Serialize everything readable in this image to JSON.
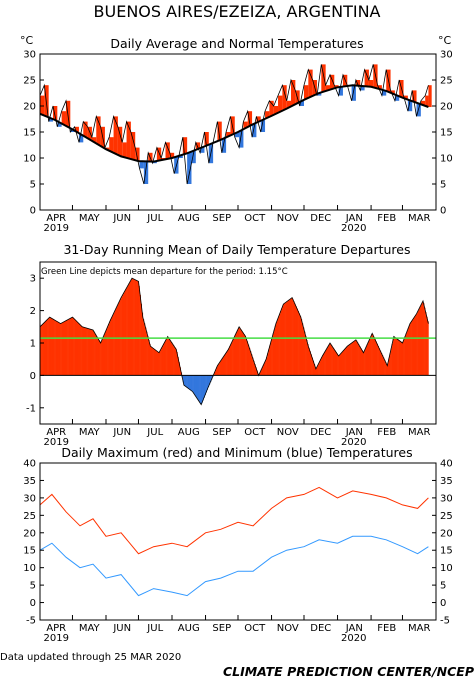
{
  "page": {
    "title": "BUENOS AIRES/EZEIZA, ARGENTINA",
    "footer_left": "Data updated through 25 MAR 2020",
    "footer_right": "CLIMATE PREDICTION CENTER/NCEP"
  },
  "colors": {
    "warm": "#ff3300",
    "cool": "#3377dd",
    "normal": "#000000",
    "mean_line": "#44dd44",
    "tmax": "#ff3300",
    "tmin": "#3399ff"
  },
  "months": [
    "APR",
    "MAY",
    "JUN",
    "JUL",
    "AUG",
    "SEP",
    "OCT",
    "NOV",
    "DEC",
    "JAN",
    "FEB",
    "MAR"
  ],
  "years": [
    "2019",
    "2020"
  ],
  "chart_data": [
    {
      "type": "area",
      "title": "Daily Average and Normal Temperatures",
      "unit_left": "°C",
      "unit_right": "°C",
      "ylim": [
        0,
        30
      ],
      "yticks": [
        0,
        5,
        10,
        15,
        20,
        25,
        30
      ],
      "x_start": "2019-04-01",
      "x_end": "2020-03-31",
      "normal": [
        [
          "2019-04-01",
          18.5
        ],
        [
          "2019-04-15",
          17.3
        ],
        [
          "2019-05-01",
          15.5
        ],
        [
          "2019-05-15",
          13.8
        ],
        [
          "2019-06-01",
          11.7
        ],
        [
          "2019-06-15",
          10.3
        ],
        [
          "2019-07-01",
          9.4
        ],
        [
          "2019-07-15",
          9.3
        ],
        [
          "2019-08-01",
          10.0
        ],
        [
          "2019-08-15",
          10.9
        ],
        [
          "2019-09-01",
          12.3
        ],
        [
          "2019-09-15",
          13.5
        ],
        [
          "2019-10-01",
          15.0
        ],
        [
          "2019-10-15",
          16.5
        ],
        [
          "2019-11-01",
          18.1
        ],
        [
          "2019-11-15",
          19.5
        ],
        [
          "2019-12-01",
          21.2
        ],
        [
          "2019-12-15",
          22.5
        ],
        [
          "2020-01-01",
          23.6
        ],
        [
          "2020-01-15",
          24.0
        ],
        [
          "2020-02-01",
          23.7
        ],
        [
          "2020-02-15",
          22.9
        ],
        [
          "2020-03-01",
          21.6
        ],
        [
          "2020-03-25",
          19.8
        ]
      ],
      "daily": [
        [
          "2019-04-01",
          22
        ],
        [
          "2019-04-05",
          24
        ],
        [
          "2019-04-09",
          17
        ],
        [
          "2019-04-13",
          20
        ],
        [
          "2019-04-17",
          16
        ],
        [
          "2019-04-21",
          19
        ],
        [
          "2019-04-25",
          21
        ],
        [
          "2019-04-29",
          15
        ],
        [
          "2019-05-03",
          16
        ],
        [
          "2019-05-07",
          13
        ],
        [
          "2019-05-11",
          17
        ],
        [
          "2019-05-15",
          16
        ],
        [
          "2019-05-19",
          14
        ],
        [
          "2019-05-23",
          18
        ],
        [
          "2019-05-27",
          16
        ],
        [
          "2019-05-31",
          12
        ],
        [
          "2019-06-04",
          14
        ],
        [
          "2019-06-08",
          18
        ],
        [
          "2019-06-12",
          16
        ],
        [
          "2019-06-16",
          13
        ],
        [
          "2019-06-20",
          17
        ],
        [
          "2019-06-24",
          15
        ],
        [
          "2019-06-28",
          12
        ],
        [
          "2019-07-02",
          8
        ],
        [
          "2019-07-06",
          5
        ],
        [
          "2019-07-10",
          11
        ],
        [
          "2019-07-14",
          9
        ],
        [
          "2019-07-18",
          12
        ],
        [
          "2019-07-22",
          10
        ],
        [
          "2019-07-26",
          13
        ],
        [
          "2019-07-30",
          11
        ],
        [
          "2019-08-03",
          7
        ],
        [
          "2019-08-07",
          10
        ],
        [
          "2019-08-11",
          14
        ],
        [
          "2019-08-15",
          5
        ],
        [
          "2019-08-19",
          9
        ],
        [
          "2019-08-23",
          13
        ],
        [
          "2019-08-27",
          11
        ],
        [
          "2019-08-31",
          15
        ],
        [
          "2019-09-04",
          9
        ],
        [
          "2019-09-08",
          13
        ],
        [
          "2019-09-12",
          17
        ],
        [
          "2019-09-16",
          11
        ],
        [
          "2019-09-20",
          15
        ],
        [
          "2019-09-24",
          18
        ],
        [
          "2019-09-28",
          14
        ],
        [
          "2019-10-02",
          12
        ],
        [
          "2019-10-06",
          17
        ],
        [
          "2019-10-10",
          19
        ],
        [
          "2019-10-14",
          14
        ],
        [
          "2019-10-18",
          18
        ],
        [
          "2019-10-22",
          15
        ],
        [
          "2019-10-26",
          19
        ],
        [
          "2019-10-30",
          21
        ],
        [
          "2019-11-03",
          20
        ],
        [
          "2019-11-07",
          22
        ],
        [
          "2019-11-11",
          24
        ],
        [
          "2019-11-15",
          21
        ],
        [
          "2019-11-19",
          25
        ],
        [
          "2019-11-23",
          23
        ],
        [
          "2019-11-27",
          20
        ],
        [
          "2019-12-01",
          24
        ],
        [
          "2019-12-05",
          27
        ],
        [
          "2019-12-09",
          25
        ],
        [
          "2019-12-13",
          22
        ],
        [
          "2019-12-17",
          28
        ],
        [
          "2019-12-21",
          24
        ],
        [
          "2019-12-25",
          26
        ],
        [
          "2019-12-29",
          24
        ],
        [
          "2020-01-02",
          22
        ],
        [
          "2020-01-06",
          26
        ],
        [
          "2020-01-10",
          24
        ],
        [
          "2020-01-14",
          21
        ],
        [
          "2020-01-18",
          25
        ],
        [
          "2020-01-22",
          23
        ],
        [
          "2020-01-26",
          27
        ],
        [
          "2020-01-30",
          25
        ],
        [
          "2020-02-03",
          28
        ],
        [
          "2020-02-07",
          24
        ],
        [
          "2020-02-11",
          22
        ],
        [
          "2020-02-15",
          27
        ],
        [
          "2020-02-19",
          23
        ],
        [
          "2020-02-23",
          21
        ],
        [
          "2020-02-27",
          25
        ],
        [
          "2020-03-02",
          22
        ],
        [
          "2020-03-06",
          19
        ],
        [
          "2020-03-10",
          23
        ],
        [
          "2020-03-14",
          18
        ],
        [
          "2020-03-18",
          21
        ],
        [
          "2020-03-22",
          22
        ],
        [
          "2020-03-25",
          24
        ]
      ]
    },
    {
      "type": "area",
      "title": "31-Day Running Mean of Daily Temperature Departures",
      "annotation": "Green Line depicts mean departure for the period: 1.15°C",
      "mean_departure": 1.15,
      "ylim": [
        -1.5,
        3.5
      ],
      "yticks": [
        -1,
        0,
        1,
        2,
        3
      ],
      "x_start": "2019-04-01",
      "x_end": "2020-03-31",
      "values": [
        [
          "2019-04-01",
          1.5
        ],
        [
          "2019-04-10",
          1.8
        ],
        [
          "2019-04-20",
          1.6
        ],
        [
          "2019-05-01",
          1.8
        ],
        [
          "2019-05-10",
          1.5
        ],
        [
          "2019-05-20",
          1.4
        ],
        [
          "2019-05-27",
          1.0
        ],
        [
          "2019-06-05",
          1.7
        ],
        [
          "2019-06-15",
          2.4
        ],
        [
          "2019-06-25",
          3.0
        ],
        [
          "2019-07-01",
          2.9
        ],
        [
          "2019-07-05",
          1.8
        ],
        [
          "2019-07-12",
          0.9
        ],
        [
          "2019-07-20",
          0.7
        ],
        [
          "2019-07-28",
          1.2
        ],
        [
          "2019-08-05",
          0.8
        ],
        [
          "2019-08-12",
          -0.3
        ],
        [
          "2019-08-20",
          -0.5
        ],
        [
          "2019-08-28",
          -0.9
        ],
        [
          "2019-09-03",
          -0.4
        ],
        [
          "2019-09-12",
          0.3
        ],
        [
          "2019-09-22",
          0.8
        ],
        [
          "2019-10-02",
          1.5
        ],
        [
          "2019-10-08",
          1.2
        ],
        [
          "2019-10-15",
          0.5
        ],
        [
          "2019-10-20",
          0.0
        ],
        [
          "2019-10-27",
          0.5
        ],
        [
          "2019-11-05",
          1.6
        ],
        [
          "2019-11-12",
          2.2
        ],
        [
          "2019-11-20",
          2.4
        ],
        [
          "2019-11-28",
          1.8
        ],
        [
          "2019-12-05",
          0.9
        ],
        [
          "2019-12-12",
          0.2
        ],
        [
          "2019-12-18",
          0.6
        ],
        [
          "2019-12-25",
          1.0
        ],
        [
          "2020-01-02",
          0.6
        ],
        [
          "2020-01-10",
          0.9
        ],
        [
          "2020-01-18",
          1.1
        ],
        [
          "2020-01-25",
          0.7
        ],
        [
          "2020-02-02",
          1.3
        ],
        [
          "2020-02-09",
          0.8
        ],
        [
          "2020-02-16",
          0.3
        ],
        [
          "2020-02-22",
          1.2
        ],
        [
          "2020-03-01",
          1.0
        ],
        [
          "2020-03-08",
          1.6
        ],
        [
          "2020-03-14",
          1.9
        ],
        [
          "2020-03-20",
          2.3
        ],
        [
          "2020-03-25",
          1.6
        ]
      ]
    },
    {
      "type": "line",
      "title": "Daily Maximum (red) and Minimum (blue) Temperatures",
      "ylim": [
        -5,
        40
      ],
      "yticks": [
        -5,
        0,
        5,
        10,
        15,
        20,
        25,
        30,
        35,
        40
      ],
      "x_start": "2019-04-01",
      "x_end": "2020-03-31",
      "series": [
        {
          "color": "#ff3300",
          "values": [
            [
              "2019-04-01",
              28
            ],
            [
              "2019-04-12",
              31
            ],
            [
              "2019-04-25",
              26
            ],
            [
              "2019-05-08",
              22
            ],
            [
              "2019-05-20",
              24
            ],
            [
              "2019-06-01",
              19
            ],
            [
              "2019-06-15",
              20
            ],
            [
              "2019-07-01",
              14
            ],
            [
              "2019-07-15",
              16
            ],
            [
              "2019-08-01",
              17
            ],
            [
              "2019-08-15",
              16
            ],
            [
              "2019-09-01",
              20
            ],
            [
              "2019-09-15",
              21
            ],
            [
              "2019-10-01",
              23
            ],
            [
              "2019-10-15",
              22
            ],
            [
              "2019-11-01",
              27
            ],
            [
              "2019-11-15",
              30
            ],
            [
              "2019-12-01",
              31
            ],
            [
              "2019-12-15",
              33
            ],
            [
              "2020-01-01",
              30
            ],
            [
              "2020-01-15",
              32
            ],
            [
              "2020-02-01",
              31
            ],
            [
              "2020-02-15",
              30
            ],
            [
              "2020-03-01",
              28
            ],
            [
              "2020-03-15",
              27
            ],
            [
              "2020-03-25",
              30
            ]
          ]
        },
        {
          "color": "#3399ff",
          "values": [
            [
              "2019-04-01",
              15
            ],
            [
              "2019-04-12",
              17
            ],
            [
              "2019-04-25",
              13
            ],
            [
              "2019-05-08",
              10
            ],
            [
              "2019-05-20",
              11
            ],
            [
              "2019-06-01",
              7
            ],
            [
              "2019-06-15",
              8
            ],
            [
              "2019-07-01",
              2
            ],
            [
              "2019-07-15",
              4
            ],
            [
              "2019-08-01",
              3
            ],
            [
              "2019-08-15",
              2
            ],
            [
              "2019-09-01",
              6
            ],
            [
              "2019-09-15",
              7
            ],
            [
              "2019-10-01",
              9
            ],
            [
              "2019-10-15",
              9
            ],
            [
              "2019-11-01",
              13
            ],
            [
              "2019-11-15",
              15
            ],
            [
              "2019-12-01",
              16
            ],
            [
              "2019-12-15",
              18
            ],
            [
              "2020-01-01",
              17
            ],
            [
              "2020-01-15",
              19
            ],
            [
              "2020-02-01",
              19
            ],
            [
              "2020-02-15",
              18
            ],
            [
              "2020-03-01",
              16
            ],
            [
              "2020-03-15",
              14
            ],
            [
              "2020-03-25",
              16
            ]
          ]
        }
      ]
    }
  ]
}
